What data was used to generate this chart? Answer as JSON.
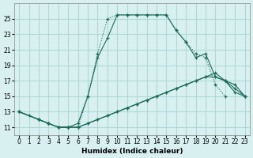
{
  "xlabel": "Humidex (Indice chaleur)",
  "bg_color": "#d8f0f0",
  "grid_color": "#b0d8d8",
  "line_color": "#1a6b5a",
  "xlim": [
    -0.5,
    23.5
  ],
  "ylim": [
    10,
    27
  ],
  "yticks": [
    11,
    13,
    15,
    17,
    19,
    21,
    23,
    25
  ],
  "xticks": [
    0,
    1,
    2,
    3,
    4,
    5,
    6,
    7,
    8,
    9,
    10,
    11,
    12,
    13,
    14,
    15,
    16,
    17,
    18,
    19,
    20,
    21,
    22,
    23
  ],
  "series": [
    {
      "x": [
        0,
        1,
        2,
        3,
        4,
        5,
        6,
        7,
        8,
        9,
        10,
        11,
        12,
        13,
        14,
        15,
        16,
        17,
        18,
        19,
        20,
        21
      ],
      "y": [
        13,
        12.5,
        12,
        11.5,
        11,
        11,
        11,
        15,
        20.5,
        25,
        25.5,
        25.5,
        25.5,
        25.5,
        25.5,
        25.5,
        23.5,
        22,
        20.5,
        20,
        16.5,
        15
      ],
      "style": "dotted",
      "marker": "+"
    },
    {
      "x": [
        0,
        2,
        3,
        4,
        5,
        6,
        7,
        8,
        9,
        10,
        11,
        12,
        13,
        14,
        15,
        16,
        17,
        18,
        19,
        20,
        21,
        22,
        23
      ],
      "y": [
        13,
        12,
        11.5,
        11,
        11,
        11.5,
        15,
        20,
        22.5,
        25.5,
        25.5,
        25.5,
        25.5,
        25.5,
        25.5,
        23.5,
        22,
        20,
        20.5,
        17.5,
        17,
        16.5,
        15
      ],
      "style": "solid",
      "marker": "+"
    },
    {
      "x": [
        0,
        2,
        3,
        4,
        5,
        6,
        7,
        8,
        9,
        10,
        11,
        12,
        13,
        14,
        15,
        16,
        17,
        18,
        19,
        20,
        21,
        22,
        23
      ],
      "y": [
        13,
        12,
        11.5,
        11,
        11,
        11,
        11.5,
        12,
        12.5,
        13,
        13.5,
        14,
        14.5,
        15,
        15.5,
        16,
        16.5,
        17,
        17.5,
        18,
        17,
        16,
        15
      ],
      "style": "solid",
      "marker": "+"
    },
    {
      "x": [
        0,
        2,
        3,
        4,
        5,
        6,
        7,
        8,
        9,
        10,
        11,
        12,
        13,
        14,
        15,
        16,
        17,
        18,
        19,
        20,
        21,
        22,
        23
      ],
      "y": [
        13,
        12,
        11.5,
        11,
        11,
        11,
        11.5,
        12,
        12.5,
        13,
        13.5,
        14,
        14.5,
        15,
        15.5,
        16,
        16.5,
        17,
        17.5,
        17.5,
        17,
        15.5,
        15
      ],
      "style": "solid",
      "marker": "+"
    }
  ]
}
